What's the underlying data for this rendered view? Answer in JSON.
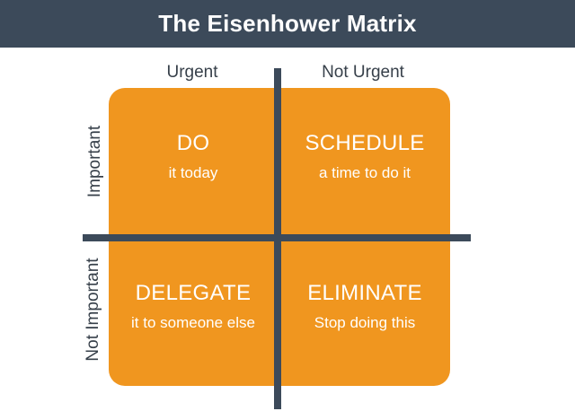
{
  "title": "The Eisenhower Matrix",
  "columns": {
    "urgent": "Urgent",
    "not_urgent": "Not Urgent"
  },
  "rows": {
    "important": "Important",
    "not_important": "Not Important"
  },
  "quadrants": {
    "do": {
      "title": "DO",
      "subtitle": "it today"
    },
    "schedule": {
      "title": "SCHEDULE",
      "subtitle": "a time to do it"
    },
    "delegate": {
      "title": "DELEGATE",
      "subtitle": "it to someone else"
    },
    "eliminate": {
      "title": "ELIMINATE",
      "subtitle": "Stop doing this"
    }
  },
  "colors": {
    "header_bg": "#3c4a5a",
    "matrix_fill": "#f0961f",
    "divider": "#3c4a5a",
    "label_text": "#37404a",
    "quadrant_text": "#ffffff"
  }
}
